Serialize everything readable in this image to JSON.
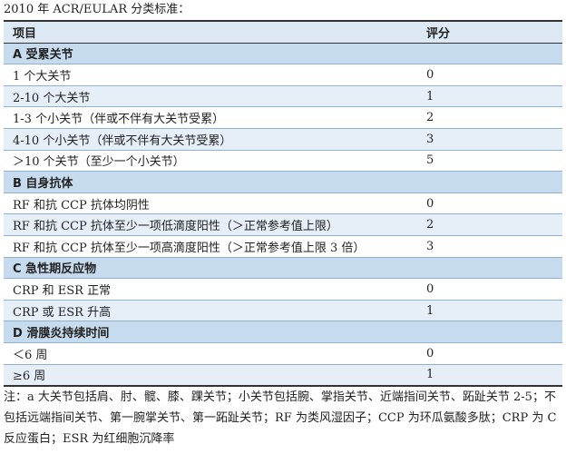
{
  "title": "2010 年 ACR/EULAR 分类标准：",
  "table": {
    "header": [
      "项目",
      "评分"
    ],
    "sections": [
      {
        "title": "A 受累关节",
        "rows": [
          [
            "1 个大关节",
            "0"
          ],
          [
            "2-10 个大关节",
            "1"
          ],
          [
            "1-3 个小关节（伴或不伴有大关节受累）",
            "2"
          ],
          [
            "4-10 个小关节（伴或不伴有大关节受累）",
            "3"
          ],
          [
            "＞10 个关节（至少一个小关节）",
            "5"
          ]
        ]
      },
      {
        "title": "B 自身抗体",
        "rows": [
          [
            "RF 和抗 CCP 抗体均阴性",
            "0"
          ],
          [
            "RF 和抗 CCP 抗体至少一项低滴度阳性（＞正常参考值上限）",
            "2"
          ],
          [
            "RF 和抗 CCP 抗体至少一项高滴度阳性（＞正常参考值上限 3 倍）",
            "3"
          ]
        ]
      },
      {
        "title": "C 急性期反应物",
        "rows": [
          [
            "CRP 和 ESR 正常",
            "0"
          ],
          [
            "CRP 或 ESR 升高",
            "1"
          ]
        ]
      },
      {
        "title": "D 滑膜炎持续时间",
        "rows": [
          [
            "＜6 周",
            "0"
          ],
          [
            "≥6 周",
            "1"
          ]
        ]
      }
    ]
  },
  "note": "注：a 大关节包括肩、肘、髋、膝、踝关节；小关节包括腕、掌指关节、近端指间关节、跖趾关节 2-5；不包括远端指间关节、第一腕掌关节、第一跖趾关节；RF 为类风湿因子；CCP 为环瓜氨酸多肽；CRP 为 C 反应蛋白；ESR 为红细胞沉降率"
}
